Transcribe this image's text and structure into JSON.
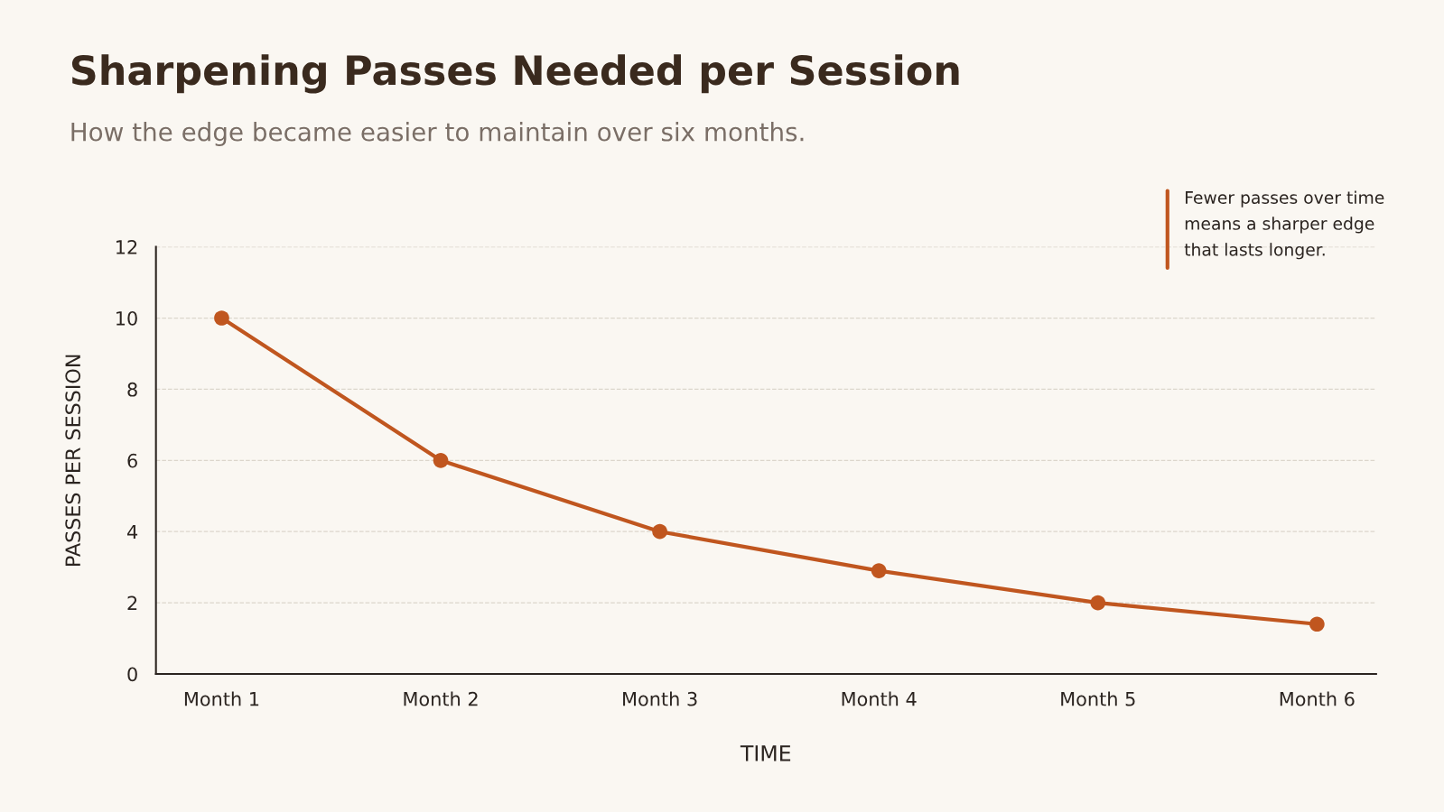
{
  "chart_data": {
    "type": "line",
    "title": "Sharpening Passes Needed per Session",
    "subtitle": "How the edge became easier to maintain over six months.",
    "xlabel": "TIME",
    "ylabel": "PASSES PER SESSION",
    "categories": [
      "Month 1",
      "Month 2",
      "Month 3",
      "Month 4",
      "Month 5",
      "Month 6"
    ],
    "series": [
      {
        "color": "#c0561f",
        "values": [
          10,
          6,
          4,
          2.9,
          2,
          1.4
        ]
      }
    ],
    "ylim": [
      0,
      12
    ],
    "yticks": [
      0,
      2,
      4,
      6,
      8,
      10,
      12
    ],
    "grid": "y",
    "marker": "circle",
    "line_style": "solid",
    "legend": false,
    "annotations": [
      "Fewer passes over time\nmeans a sharper edge\nthat lasts longer."
    ]
  }
}
